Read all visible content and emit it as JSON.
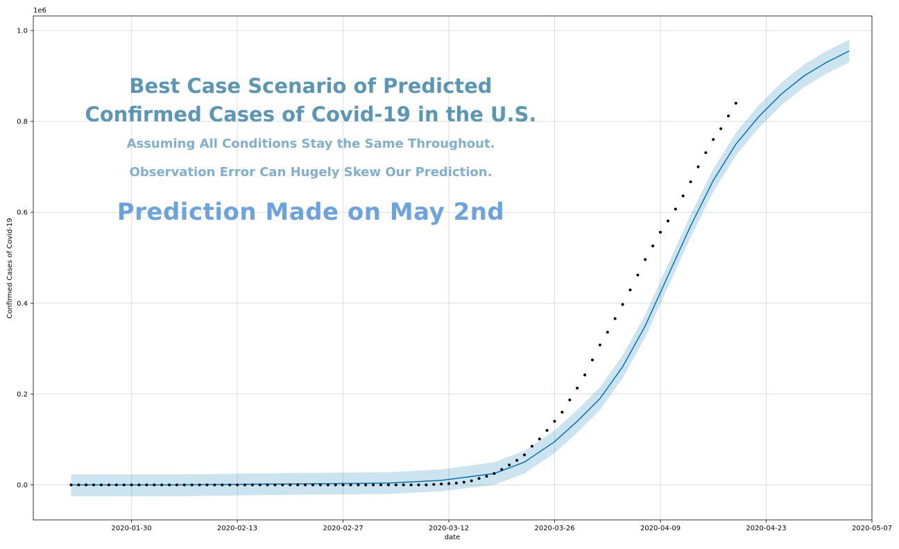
{
  "chart_data": {
    "type": "line",
    "multiplier_label": "1e6",
    "xlabel": "date",
    "ylabel": "Confirmed Cases of Covid-19",
    "ylim": [
      -0.077,
      1.032
    ],
    "xlim": [
      "2020-01-17",
      "2020-05-07"
    ],
    "y_ticks": [
      "0.0",
      "0.2",
      "0.4",
      "0.6",
      "0.8",
      "1.0"
    ],
    "x_ticks": [
      "2020-01-30",
      "2020-02-13",
      "2020-02-27",
      "2020-03-12",
      "2020-03-26",
      "2020-04-09",
      "2020-04-23",
      "2020-05-07"
    ],
    "grid": true,
    "forecast": {
      "x": [
        "2020-01-22",
        "2020-02-05",
        "2020-02-19",
        "2020-03-04",
        "2020-03-11",
        "2020-03-18",
        "2020-03-22",
        "2020-03-26",
        "2020-03-29",
        "2020-04-01",
        "2020-04-04",
        "2020-04-07",
        "2020-04-10",
        "2020-04-13",
        "2020-04-16",
        "2020-04-19",
        "2020-04-22",
        "2020-04-25",
        "2020-04-28",
        "2020-05-01",
        "2020-05-04"
      ],
      "y": [
        0.0,
        0.0,
        0.002,
        0.004,
        0.01,
        0.025,
        0.05,
        0.095,
        0.14,
        0.19,
        0.26,
        0.35,
        0.46,
        0.57,
        0.67,
        0.75,
        0.81,
        0.86,
        0.9,
        0.93,
        0.955
      ],
      "lower": [
        -0.025,
        -0.025,
        -0.022,
        -0.02,
        -0.014,
        0.0,
        0.025,
        0.07,
        0.115,
        0.165,
        0.235,
        0.325,
        0.435,
        0.545,
        0.645,
        0.725,
        0.785,
        0.835,
        0.875,
        0.905,
        0.93
      ],
      "upper": [
        0.023,
        0.023,
        0.026,
        0.028,
        0.034,
        0.05,
        0.075,
        0.12,
        0.165,
        0.215,
        0.285,
        0.375,
        0.485,
        0.595,
        0.695,
        0.775,
        0.835,
        0.885,
        0.925,
        0.955,
        0.98
      ],
      "color": "#0072b2",
      "band_color": "#0072b2"
    },
    "observed": {
      "start": "2020-01-22",
      "y": [
        0.0,
        0.0,
        0.0,
        0.0,
        0.0,
        0.0,
        0.0,
        0.0,
        0.0,
        0.0,
        0.0,
        0.0,
        0.0,
        0.0,
        0.0,
        0.0,
        0.0,
        0.0,
        0.0,
        0.0,
        0.0,
        0.0,
        0.0,
        0.0,
        0.0,
        0.0,
        0.0,
        0.0,
        0.0,
        0.0,
        0.0,
        0.0,
        0.0,
        0.0,
        0.0,
        0.0,
        0.0,
        0.0,
        0.0,
        0.0,
        0.0,
        0.0,
        0.0,
        0.0,
        0.0,
        0.0,
        0.0,
        0.0,
        0.001,
        0.002,
        0.003,
        0.004,
        0.006,
        0.009,
        0.014,
        0.019,
        0.025,
        0.034,
        0.044,
        0.054,
        0.066,
        0.085,
        0.101,
        0.12,
        0.14,
        0.16,
        0.187,
        0.213,
        0.242,
        0.275,
        0.308,
        0.336,
        0.366,
        0.397,
        0.429,
        0.462,
        0.496,
        0.526,
        0.556,
        0.581,
        0.607,
        0.636,
        0.667,
        0.7,
        0.731,
        0.76,
        0.784,
        0.812,
        0.84
      ],
      "color": "#000000"
    }
  },
  "annotations": {
    "title_line1": "Best Case Scenario of Predicted",
    "title_line2": "Confirmed Cases of Covid-19 in the U.S.",
    "subtitle1": "Assuming All Conditions Stay the Same Throughout.",
    "subtitle2": "Observation Error Can Hugely Skew Our Prediction.",
    "prediction_note": "Prediction Made on May 2nd"
  }
}
